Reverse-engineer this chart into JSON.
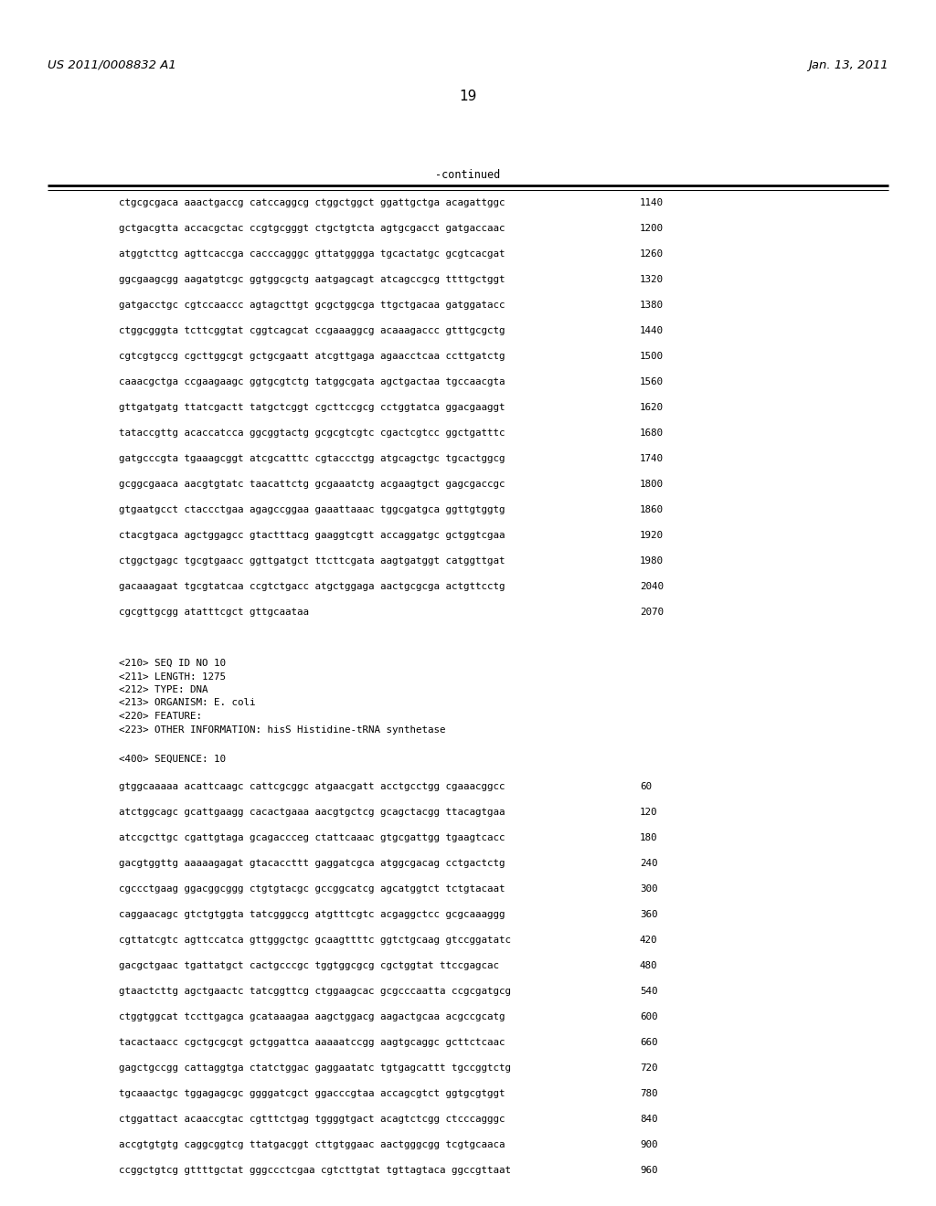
{
  "header_left": "US 2011/0008832 A1",
  "header_right": "Jan. 13, 2011",
  "page_number": "19",
  "continued_label": "-continued",
  "bg_color": "#ffffff",
  "text_color": "#000000",
  "sequence_lines_top": [
    [
      "ctgcgcgaca aaactgaccg catccaggcg ctggctggct ggattgctga acagattggc",
      "1140"
    ],
    [
      "gctgacgtta accacgctac ccgtgcgggt ctgctgtcta agtgcgacct gatgaccaac",
      "1200"
    ],
    [
      "atggtcttcg agttcaccga cacccagggc gttatgggga tgcactatgc gcgtcacgat",
      "1260"
    ],
    [
      "ggcgaagcgg aagatgtcgc ggtggcgctg aatgagcagt atcagccgcg ttttgctggt",
      "1320"
    ],
    [
      "gatgacctgc cgtccaaccc agtagcttgt gcgctggcga ttgctgacaa gatggatacc",
      "1380"
    ],
    [
      "ctggcgggta tcttcggtat cggtcagcat ccgaaaggcg acaaagaccc gtttgcgctg",
      "1440"
    ],
    [
      "cgtcgtgccg cgcttggcgt gctgcgaatt atcgttgaga agaacctcaa ccttgatctg",
      "1500"
    ],
    [
      "caaacgctga ccgaagaagc ggtgcgtctg tatggcgata agctgactaa tgccaacgta",
      "1560"
    ],
    [
      "gttgatgatg ttatcgactt tatgctcggt cgcttccgcg cctggtatca ggacgaaggt",
      "1620"
    ],
    [
      "tataccgttg acaccatcca ggcggtactg gcgcgtcgtc cgactcgtcc ggctgatttc",
      "1680"
    ],
    [
      "gatgcccgta tgaaagcggt atcgcatttc cgtaccctgg atgcagctgc tgcactggcg",
      "1740"
    ],
    [
      "gcggcgaaca aacgtgtatc taacattctg gcgaaatctg acgaagtgct gagcgaccgc",
      "1800"
    ],
    [
      "gtgaatgcct ctaccctgaa agagccggaa gaaattaaac tggcgatgca ggttgtggtg",
      "1860"
    ],
    [
      "ctacgtgaca agctggagcc gtactttacg gaaggtcgtt accaggatgc gctggtcgaa",
      "1920"
    ],
    [
      "ctggctgagc tgcgtgaacc ggttgatgct ttcttcgata aagtgatggt catggttgat",
      "1980"
    ],
    [
      "gacaaagaat tgcgtatcaa ccgtctgacc atgctggaga aactgcgcga actgttcctg",
      "2040"
    ],
    [
      "cgcgttgcgg atatttcgct gttgcaataa",
      "2070"
    ]
  ],
  "metadata_lines": [
    "<210> SEQ ID NO 10",
    "<211> LENGTH: 1275",
    "<212> TYPE: DNA",
    "<213> ORGANISM: E. coli",
    "<220> FEATURE:",
    "<223> OTHER INFORMATION: hisS Histidine-tRNA synthetase"
  ],
  "sequence_label": "<400> SEQUENCE: 10",
  "sequence_lines_bottom": [
    [
      "gtggcaaaaa acattcaagc cattcgcggc atgaacgatt acctgcctgg cgaaacggcc",
      "60"
    ],
    [
      "atctggcagc gcattgaagg cacactgaaa aacgtgctcg gcagctacgg ttacagtgaa",
      "120"
    ],
    [
      "atccgcttgc cgattgtaga gcagaccceg ctattcaaac gtgcgattgg tgaagtcacc",
      "180"
    ],
    [
      "gacgtggttg aaaaagagat gtacaccttt gaggatcgca atggcgacag cctgactctg",
      "240"
    ],
    [
      "cgccctgaag ggacggcggg ctgtgtacgc gccggcatcg agcatggtct tctgtacaat",
      "300"
    ],
    [
      "caggaacagc gtctgtggta tatcgggccg atgtttcgtc acgaggctcc gcgcaaaggg",
      "360"
    ],
    [
      "cgttatcgtc agttccatca gttgggctgc gcaagttttc ggtctgcaag gtccggatatc",
      "420"
    ],
    [
      "gacgctgaac tgattatgct cactgcccgc tggtggcgcg cgctggtat ttccgagcac",
      "480"
    ],
    [
      "gtaactcttg agctgaactc tatcggttcg ctggaagcac gcgcccaatta ccgcgatgcg",
      "540"
    ],
    [
      "ctggtggcat tccttgagca gcataaagaa aagctggacg aagactgcaa acgccgcatg",
      "600"
    ],
    [
      "tacactaacc cgctgcgcgt gctggattca aaaaatccgg aagtgcaggc gcttctcaac",
      "660"
    ],
    [
      "gagctgccgg cattaggtga ctatctggac gaggaatatc tgtgagcattt tgccggtctg",
      "720"
    ],
    [
      "tgcaaactgc tggagagcgc ggggatcgct ggacccgtaa accagcgtct ggtgcgtggt",
      "780"
    ],
    [
      "ctggattact acaaccgtac cgtttctgag tggggtgact acagtctcgg ctcccagggc",
      "840"
    ],
    [
      "accgtgtgtg caggcggtcg ttatgacggt cttgtggaac aactgggcgg tcgtgcaaca",
      "900"
    ],
    [
      "ccggctgtcg gttttgctat gggccctcgaa cgtcttgtat tgttagtaca ggccgttaat",
      "960"
    ]
  ]
}
